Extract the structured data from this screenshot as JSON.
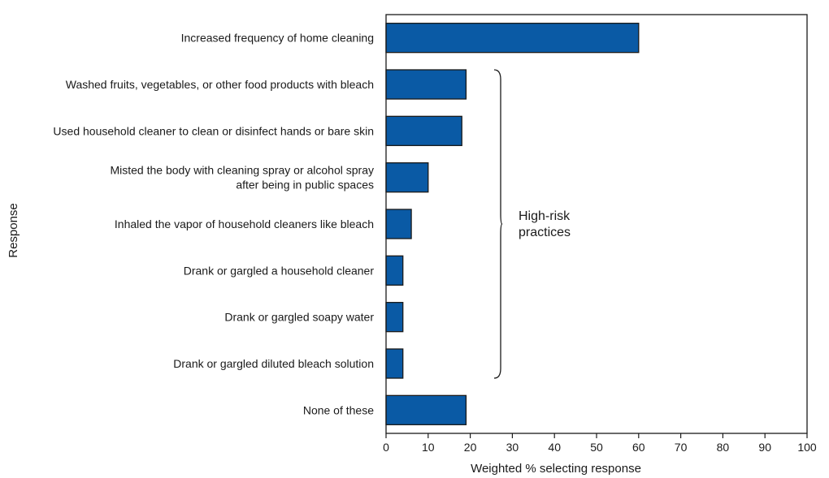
{
  "chart_data": {
    "type": "bar",
    "orientation": "horizontal",
    "categories": [
      [
        "Increased frequency of home cleaning"
      ],
      [
        "Washed fruits, vegetables, or other food products with bleach"
      ],
      [
        "Used household cleaner to clean or disinfect hands or bare skin"
      ],
      [
        "Misted the body with cleaning spray or alcohol spray",
        "after being in public spaces"
      ],
      [
        "Inhaled the vapor of household cleaners like bleach"
      ],
      [
        "Drank or gargled a household cleaner"
      ],
      [
        "Drank or gargled soapy water"
      ],
      [
        "Drank or gargled diluted bleach solution"
      ],
      [
        "None of these"
      ]
    ],
    "values": [
      60,
      19,
      18,
      10,
      6,
      4,
      4,
      4,
      19
    ],
    "xlabel": "Weighted % selecting response",
    "ylabel": "Response",
    "xlim": [
      0,
      100
    ],
    "xticks": [
      0,
      10,
      20,
      30,
      40,
      50,
      60,
      70,
      80,
      90,
      100
    ],
    "bar_color": "#0a5aa5",
    "grid": false,
    "annotation": {
      "lines": [
        "High-risk",
        "practices"
      ],
      "first_category_index": 1,
      "last_category_index": 7
    }
  }
}
